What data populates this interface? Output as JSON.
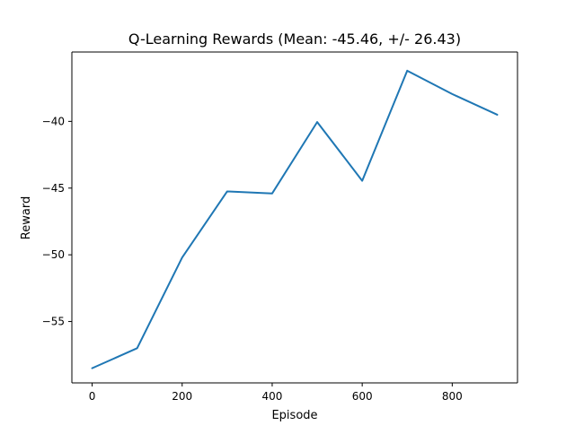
{
  "chart_data": {
    "type": "line",
    "title": "Q-Learning Rewards (Mean: -45.46, +/- 26.43)",
    "xlabel": "Episode",
    "ylabel": "Reward",
    "xlim": [
      -45,
      945
    ],
    "ylim": [
      -59.6,
      -34.8
    ],
    "xticks": [
      0,
      200,
      400,
      600,
      800
    ],
    "xtick_labels": [
      "0",
      "200",
      "400",
      "600",
      "800"
    ],
    "yticks": [
      -55,
      -50,
      -45,
      -40
    ],
    "ytick_labels": [
      "−55",
      "−50",
      "−45",
      "−40"
    ],
    "grid": false,
    "legend": "none",
    "series": [
      {
        "color": "#1f77b4",
        "x": [
          0,
          100,
          200,
          300,
          400,
          500,
          600,
          700,
          800,
          900
        ],
        "y": [
          -58.5,
          -57.0,
          -50.2,
          -45.25,
          -45.4,
          -40.05,
          -44.45,
          -36.2,
          -37.95,
          -39.5
        ]
      }
    ]
  }
}
